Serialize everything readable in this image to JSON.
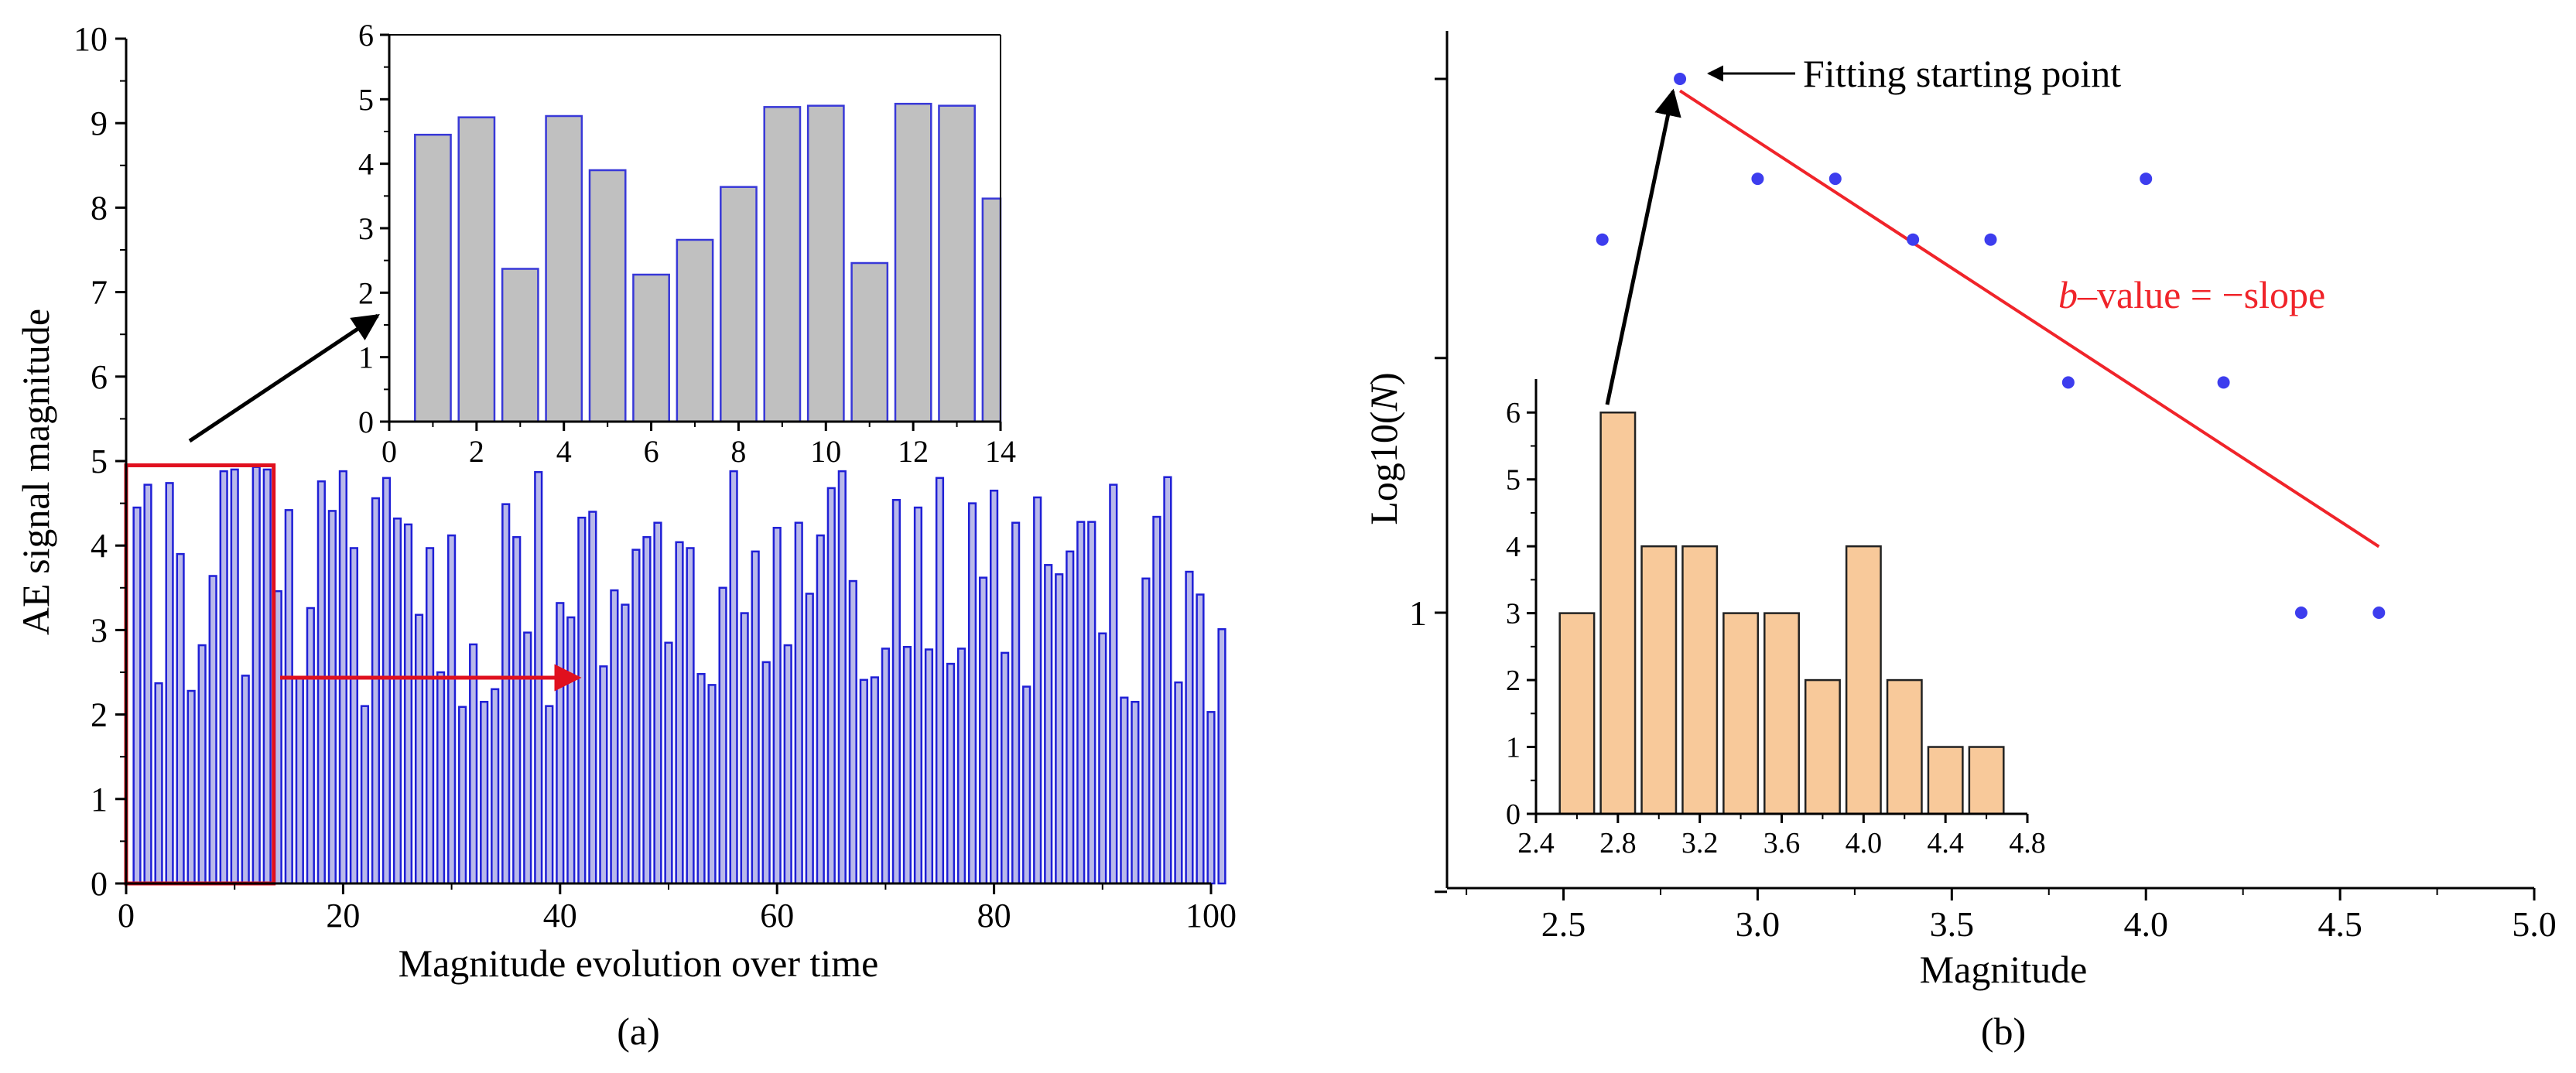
{
  "chart_data": [
    {
      "id": "a_main",
      "type": "bar",
      "caption": "(a)",
      "xlabel": "Magnitude evolution over time",
      "ylabel": "AE signal magnitude",
      "xlim": [
        0,
        100
      ],
      "ylim": [
        0,
        10
      ],
      "xticks": [
        "0",
        "20",
        "40",
        "60",
        "80",
        "100"
      ],
      "yticks": [
        "0",
        "1",
        "2",
        "3",
        "4",
        "5",
        "6",
        "7",
        "8",
        "9",
        "10"
      ],
      "bar_color": "#b9b9ea",
      "bar_edge": "#1f1fd6",
      "highlight_box": {
        "x": [
          0,
          13.6
        ],
        "y": [
          0,
          4.95
        ],
        "color": "#e0101e"
      },
      "values": [
        4.45,
        4.72,
        2.37,
        4.74,
        3.9,
        2.28,
        2.82,
        3.64,
        4.88,
        4.9,
        2.46,
        4.93,
        4.9,
        3.46,
        4.42,
        2.44,
        3.26,
        4.76,
        4.41,
        4.88,
        3.97,
        2.1,
        4.56,
        4.8,
        4.32,
        4.25,
        3.18,
        3.97,
        2.5,
        4.12,
        2.09,
        2.83,
        2.15,
        2.3,
        4.49,
        4.1,
        2.97,
        4.87,
        2.1,
        3.32,
        3.15,
        4.33,
        4.4,
        2.57,
        3.47,
        3.3,
        3.95,
        4.1,
        4.27,
        2.85,
        4.04,
        3.97,
        2.48,
        2.35,
        3.5,
        4.88,
        3.2,
        3.93,
        2.62,
        4.21,
        2.82,
        4.27,
        3.43,
        4.12,
        4.68,
        4.88,
        3.58,
        2.41,
        2.44,
        2.78,
        4.54,
        2.8,
        4.45,
        2.77,
        4.8,
        2.6,
        2.78,
        4.5,
        3.62,
        4.65,
        2.73,
        4.27,
        2.33,
        4.57,
        3.77,
        3.66,
        3.93,
        4.28,
        4.28,
        2.96,
        4.72,
        2.2,
        2.15,
        3.61,
        4.34,
        4.81,
        2.38,
        3.69,
        3.42,
        2.03,
        3.01
      ]
    },
    {
      "id": "a_inset",
      "type": "bar",
      "xlim": [
        0,
        14
      ],
      "ylim": [
        0,
        6
      ],
      "xticks": [
        "0",
        "2",
        "4",
        "6",
        "8",
        "10",
        "12",
        "14"
      ],
      "yticks": [
        "0",
        "1",
        "2",
        "3",
        "4",
        "5",
        "6"
      ],
      "bar_color": "#c0c0c0",
      "bar_edge": "#3838d8",
      "values": [
        4.45,
        4.72,
        2.37,
        4.74,
        3.9,
        2.28,
        2.82,
        3.64,
        4.88,
        4.9,
        2.46,
        4.93,
        4.9,
        3.46
      ]
    },
    {
      "id": "b_main",
      "type": "scatter",
      "caption": "(b)",
      "xlabel": "Magnitude",
      "ylabel_pre": "Log10(",
      "ylabel_var": "N",
      "ylabel_post": ")",
      "xlim": [
        2.2,
        5.0
      ],
      "yscale": "log",
      "xticks": [
        "2.5",
        "3.0",
        "3.5",
        "4.0",
        "4.5",
        "5.0"
      ],
      "ytick_label": "1",
      "point_color": "#3d3dee",
      "line_color": "#f0242a",
      "points": [
        {
          "x": 2.6,
          "y": 5
        },
        {
          "x": 2.8,
          "y": 10
        },
        {
          "x": 3.0,
          "y": 6.5
        },
        {
          "x": 3.2,
          "y": 6.5
        },
        {
          "x": 3.4,
          "y": 5
        },
        {
          "x": 3.6,
          "y": 5
        },
        {
          "x": 3.8,
          "y": 2.7
        },
        {
          "x": 4.0,
          "y": 6.5
        },
        {
          "x": 4.2,
          "y": 2.7
        },
        {
          "x": 4.4,
          "y": 1
        },
        {
          "x": 4.6,
          "y": 1
        }
      ],
      "fit_line": {
        "x": [
          2.8,
          4.6
        ],
        "y": [
          9.5,
          1.33
        ]
      },
      "annotation_fit": "Fitting starting point",
      "annotation_b_var": "b",
      "annotation_b_rest": "–value = −slope"
    },
    {
      "id": "b_inset",
      "type": "bar",
      "xlim": [
        2.4,
        4.8
      ],
      "ylim": [
        0,
        6.5
      ],
      "xticks": [
        "2.4",
        "2.8",
        "3.2",
        "3.6",
        "4.0",
        "4.4",
        "4.8"
      ],
      "yticks": [
        "0",
        "1",
        "2",
        "3",
        "4",
        "5",
        "6"
      ],
      "bar_color": "#f8c99a",
      "bar_edge": "#222222",
      "categories": [
        2.6,
        2.8,
        3.0,
        3.2,
        3.4,
        3.6,
        3.8,
        4.0,
        4.2,
        4.4,
        4.6
      ],
      "values": [
        3,
        6,
        4,
        4,
        3,
        3,
        2,
        4,
        2,
        1,
        1
      ]
    }
  ]
}
